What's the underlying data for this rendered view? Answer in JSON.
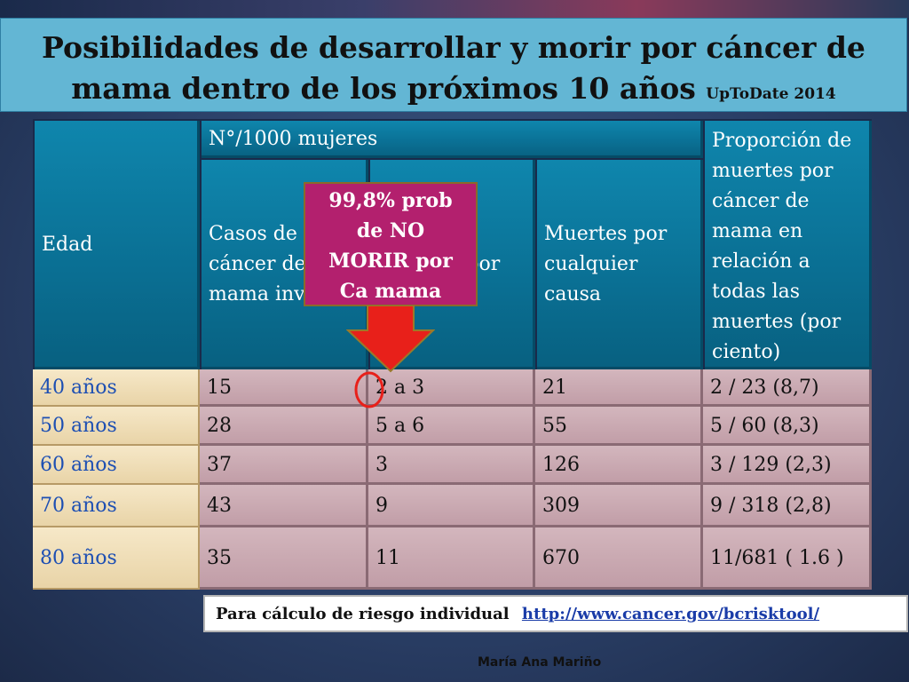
{
  "title": {
    "line1": "Posibilidades de desarrollar y morir por cáncer de",
    "line2": "mama dentro de los próximos 10 años",
    "source": "UpToDate 2014"
  },
  "table": {
    "headers": {
      "age": "Edad",
      "group": "N°/1000 mujeres",
      "cases": "Casos de cáncer de mama invasivo",
      "deaths_ca": "Muertes por",
      "deaths_all": "Muertes por cualquier causa",
      "proportion": "Proporción de muertes por cáncer de mama en relación a todas las muertes (por ciento)"
    },
    "rows": [
      {
        "age": "40 años",
        "cases": "15",
        "deaths_ca": "2 a 3",
        "deaths_all": "21",
        "proportion": "2 / 23 (8,7)"
      },
      {
        "age": "50 años",
        "cases": "28",
        "deaths_ca": "5 a 6",
        "deaths_all": "55",
        "proportion": "5 / 60 (8,3)"
      },
      {
        "age": "60 años",
        "cases": "37",
        "deaths_ca": "3",
        "deaths_all": "126",
        "proportion": "3 / 129 (2,3)"
      },
      {
        "age": "70 años",
        "cases": "43",
        "deaths_ca": "9",
        "deaths_all": "309",
        "proportion": "9 / 318 (2,8)"
      },
      {
        "age": "80 años",
        "cases": "35",
        "deaths_ca": "11",
        "deaths_all": "670",
        "proportion": "11/681 ( 1.6 )"
      }
    ]
  },
  "callout": {
    "line1": "99,8% prob",
    "line2": "de NO",
    "line3": "MORIR por",
    "line4": "Ca mama"
  },
  "risk_note": {
    "label": "Para cálculo de riesgo individual",
    "url": "http://www.cancer.gov/bcrisktool/"
  },
  "author": "María Ana Mariño",
  "colors": {
    "title_bg": "#63b6d4",
    "header_bg": "#0a6f93",
    "age_bg": "#f0dfb8",
    "data_bg": "#c9a9b1",
    "callout_bg": "#b3206e",
    "arrow": "#e8201a"
  }
}
